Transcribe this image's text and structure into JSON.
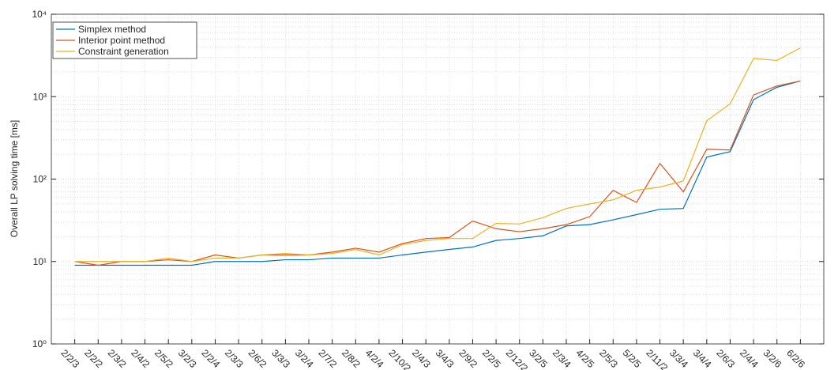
{
  "chart_data": {
    "type": "line",
    "y_label": "Overall LP solving time [ms]",
    "log_y": true,
    "grid": true,
    "minor_grid": true,
    "legend": "upper left",
    "categories": [
      "2/2/3",
      "2/2/2",
      "2/3/2",
      "2/4/2",
      "2/5/2",
      "3/2/3",
      "2/2/4",
      "2/3/3",
      "2/6/2",
      "3/3/3",
      "3/2/4",
      "2/7/2",
      "2/8/2",
      "4/2/4",
      "2/10/2",
      "2/4/3",
      "3/4/3",
      "2/9/2",
      "2/2/5",
      "2/12/2",
      "3/2/5",
      "2/3/4",
      "4/2/5",
      "2/5/3",
      "5/2/5",
      "2/11/2",
      "3/3/4",
      "3/4/4",
      "2/6/3",
      "2/4/4",
      "3/2/6",
      "6/2/6"
    ],
    "ylim": [
      1,
      10000
    ],
    "yticks": [
      {
        "value": 1,
        "label": "10⁰"
      },
      {
        "value": 10,
        "label": "10¹"
      },
      {
        "value": 100,
        "label": "10²"
      },
      {
        "value": 1000,
        "label": "10³"
      },
      {
        "value": 10000,
        "label": "10⁴"
      }
    ],
    "series": [
      {
        "name": "Simplex method",
        "color": "#0072bd",
        "values": [
          9,
          9,
          9,
          9,
          9,
          9,
          10,
          10,
          10,
          10.5,
          10.5,
          11,
          11,
          11,
          12,
          13,
          14,
          15,
          18,
          19,
          20.5,
          27,
          28,
          32,
          37,
          43,
          44,
          185,
          215,
          920,
          1300,
          1550
        ]
      },
      {
        "name": "Interior point method",
        "color": "#d95319",
        "values": [
          10,
          9,
          10,
          10,
          10.5,
          10,
          12,
          11,
          12,
          12,
          12,
          13,
          14.5,
          13,
          16.5,
          19,
          19.5,
          31,
          25,
          23,
          25,
          28,
          35,
          73,
          52,
          155,
          70,
          230,
          225,
          1050,
          1350,
          1550
        ]
      },
      {
        "name": "Constraint generation",
        "color": "#edb120",
        "values": [
          10,
          10,
          10,
          10,
          11,
          10,
          11,
          11,
          12,
          12.5,
          12,
          12.5,
          14,
          12,
          16,
          18,
          19,
          19,
          29,
          28.5,
          34,
          44,
          50,
          56,
          73,
          80,
          95,
          510,
          820,
          2900,
          2750,
          3900
        ]
      }
    ]
  }
}
